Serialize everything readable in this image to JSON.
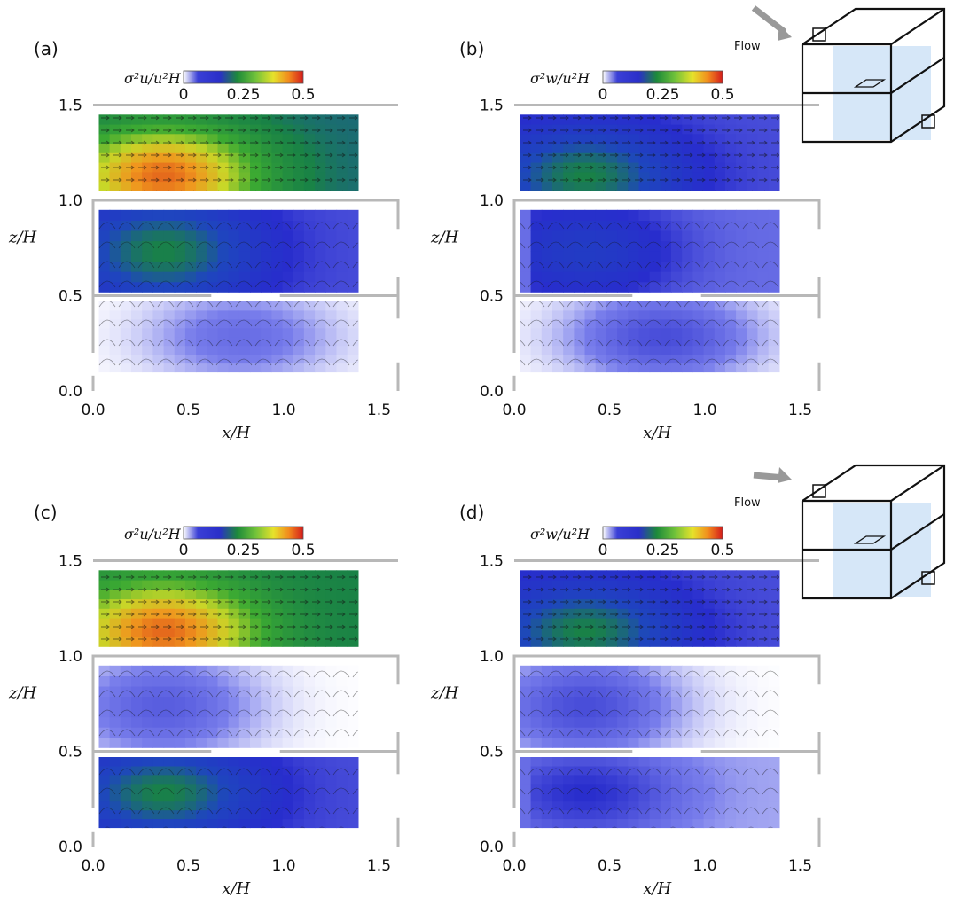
{
  "chart_data": [
    {
      "panel": "(a)",
      "type": "heatmap",
      "quantity": "σu²/uH²",
      "colorbar": {
        "label": "σ²u/u²H",
        "ticks": [
          "0",
          "0.25",
          "0.5"
        ],
        "range": [
          0,
          0.5
        ]
      },
      "xlabel": "x/H",
      "ylabel": "z/H",
      "xticks": [
        "0.0",
        "0.5",
        "1.0",
        "1.5"
      ],
      "yticks": [
        "0.0",
        "0.5",
        "1.0",
        "1.5"
      ],
      "xlim": [
        0,
        1.6
      ],
      "ylim": [
        0,
        1.5
      ],
      "regions": [
        {
          "name": "upper",
          "peak": 0.45,
          "base": 0.18
        },
        {
          "name": "middle",
          "peak": 0.2,
          "base": 0.06
        },
        {
          "name": "lower",
          "peak": 0.04,
          "base": 0.0
        }
      ]
    },
    {
      "panel": "(b)",
      "type": "heatmap",
      "quantity": "σw²/uH²",
      "colorbar": {
        "label": "σ²w/u²H",
        "ticks": [
          "0",
          "0.25",
          "0.5"
        ],
        "range": [
          0,
          0.5
        ]
      },
      "xlabel": "x/H",
      "ylabel": "z/H",
      "xticks": [
        "0.0",
        "0.5",
        "1.0",
        "1.5"
      ],
      "yticks": [
        "0.0",
        "0.5",
        "1.0",
        "1.5"
      ],
      "xlim": [
        0,
        1.6
      ],
      "ylim": [
        0,
        1.5
      ],
      "regions": [
        {
          "name": "upper",
          "peak": 0.2,
          "base": 0.06
        },
        {
          "name": "middle",
          "peak": 0.12,
          "base": 0.04
        },
        {
          "name": "lower",
          "peak": 0.06,
          "base": 0.0
        }
      ]
    },
    {
      "panel": "(c)",
      "type": "heatmap",
      "quantity": "σu²/uH²",
      "colorbar": {
        "label": "σ²u/u²H",
        "ticks": [
          "0",
          "0.25",
          "0.5"
        ],
        "range": [
          0,
          0.5
        ]
      },
      "xlabel": "x/H",
      "ylabel": "z/H",
      "xticks": [
        "0.0",
        "0.5",
        "1.0",
        "1.5"
      ],
      "yticks": [
        "0.0",
        "0.5",
        "1.0",
        "1.5"
      ],
      "xlim": [
        0,
        1.6
      ],
      "ylim": [
        0,
        1.5
      ],
      "regions": [
        {
          "name": "upper",
          "peak": 0.45,
          "base": 0.2
        },
        {
          "name": "middle",
          "peak": 0.05,
          "base": 0.0
        },
        {
          "name": "lower",
          "peak": 0.2,
          "base": 0.06
        }
      ]
    },
    {
      "panel": "(d)",
      "type": "heatmap",
      "quantity": "σw²/uH²",
      "colorbar": {
        "label": "σ²w/u²H",
        "ticks": [
          "0",
          "0.25",
          "0.5"
        ],
        "range": [
          0,
          0.5
        ]
      },
      "xlabel": "x/H",
      "ylabel": "z/H",
      "xticks": [
        "0.0",
        "0.5",
        "1.0",
        "1.5"
      ],
      "yticks": [
        "0.0",
        "0.5",
        "1.0",
        "1.5"
      ],
      "xlim": [
        0,
        1.6
      ],
      "ylim": [
        0,
        1.5
      ],
      "regions": [
        {
          "name": "upper",
          "peak": 0.2,
          "base": 0.06
        },
        {
          "name": "middle",
          "peak": 0.06,
          "base": 0.0
        },
        {
          "name": "lower",
          "peak": 0.08,
          "base": 0.02
        }
      ]
    }
  ],
  "inset_top": {
    "label": "Flow"
  },
  "inset_bottom": {
    "label": "Flow"
  },
  "colors": {
    "wall": "#b8b8b8",
    "flow_arrow": "#999999",
    "plane": "#cfe3f7"
  }
}
